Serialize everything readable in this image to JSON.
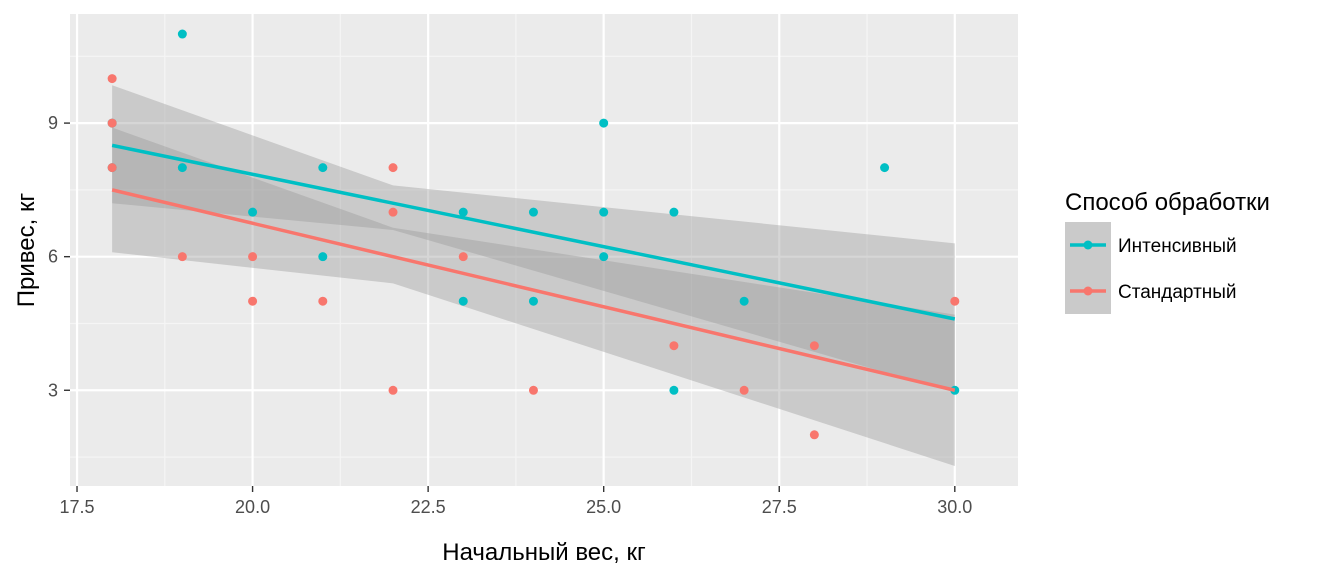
{
  "chart_data": {
    "type": "scatter",
    "xlabel": "Начальный вес, кг",
    "ylabel": "Привес, кг",
    "xlim": [
      17.4,
      30.9
    ],
    "ylim": [
      0.85,
      11.45
    ],
    "x_ticks": [
      17.5,
      20.0,
      22.5,
      25.0,
      27.5,
      30.0
    ],
    "x_tick_labels": [
      "17.5",
      "20.0",
      "22.5",
      "25.0",
      "27.5",
      "30.0"
    ],
    "y_ticks": [
      3,
      6,
      9
    ],
    "y_tick_labels": [
      "3",
      "6",
      "9"
    ],
    "grid": true,
    "legend": {
      "title": "Способ обработки",
      "position": "right"
    },
    "series": [
      {
        "name": "Интенсивный",
        "color": "#00BFC4",
        "points": [
          {
            "x": 18,
            "y": 9
          },
          {
            "x": 18,
            "y": 8
          },
          {
            "x": 19,
            "y": 11
          },
          {
            "x": 19,
            "y": 8
          },
          {
            "x": 20,
            "y": 7
          },
          {
            "x": 21,
            "y": 8
          },
          {
            "x": 21,
            "y": 6
          },
          {
            "x": 23,
            "y": 7
          },
          {
            "x": 23,
            "y": 5
          },
          {
            "x": 24,
            "y": 7
          },
          {
            "x": 24,
            "y": 5
          },
          {
            "x": 25,
            "y": 9
          },
          {
            "x": 25,
            "y": 7
          },
          {
            "x": 25,
            "y": 6
          },
          {
            "x": 26,
            "y": 7
          },
          {
            "x": 26,
            "y": 3
          },
          {
            "x": 27,
            "y": 5
          },
          {
            "x": 29,
            "y": 8
          },
          {
            "x": 30,
            "y": 3
          }
        ],
        "fit": {
          "x": [
            18,
            30
          ],
          "y": [
            8.5,
            4.6
          ]
        },
        "ci": {
          "x": [
            18,
            22,
            30
          ],
          "lower": [
            7.2,
            6.6,
            2.95
          ],
          "upper": [
            9.85,
            7.6,
            6.3
          ]
        }
      },
      {
        "name": "Стандартный",
        "color": "#F8766D",
        "points": [
          {
            "x": 18,
            "y": 10
          },
          {
            "x": 18,
            "y": 9
          },
          {
            "x": 18,
            "y": 8
          },
          {
            "x": 19,
            "y": 6
          },
          {
            "x": 20,
            "y": 6
          },
          {
            "x": 20,
            "y": 5
          },
          {
            "x": 21,
            "y": 5
          },
          {
            "x": 22,
            "y": 8
          },
          {
            "x": 22,
            "y": 7
          },
          {
            "x": 22,
            "y": 3
          },
          {
            "x": 23,
            "y": 6
          },
          {
            "x": 24,
            "y": 3
          },
          {
            "x": 26,
            "y": 4
          },
          {
            "x": 27,
            "y": 3
          },
          {
            "x": 28,
            "y": 4
          },
          {
            "x": 28,
            "y": 2
          },
          {
            "x": 30,
            "y": 5
          }
        ],
        "fit": {
          "x": [
            18,
            30
          ],
          "y": [
            7.5,
            3.0
          ]
        },
        "ci": {
          "x": [
            18,
            22,
            30
          ],
          "lower": [
            6.1,
            5.4,
            1.3
          ],
          "upper": [
            8.9,
            6.65,
            4.7
          ]
        }
      }
    ]
  }
}
